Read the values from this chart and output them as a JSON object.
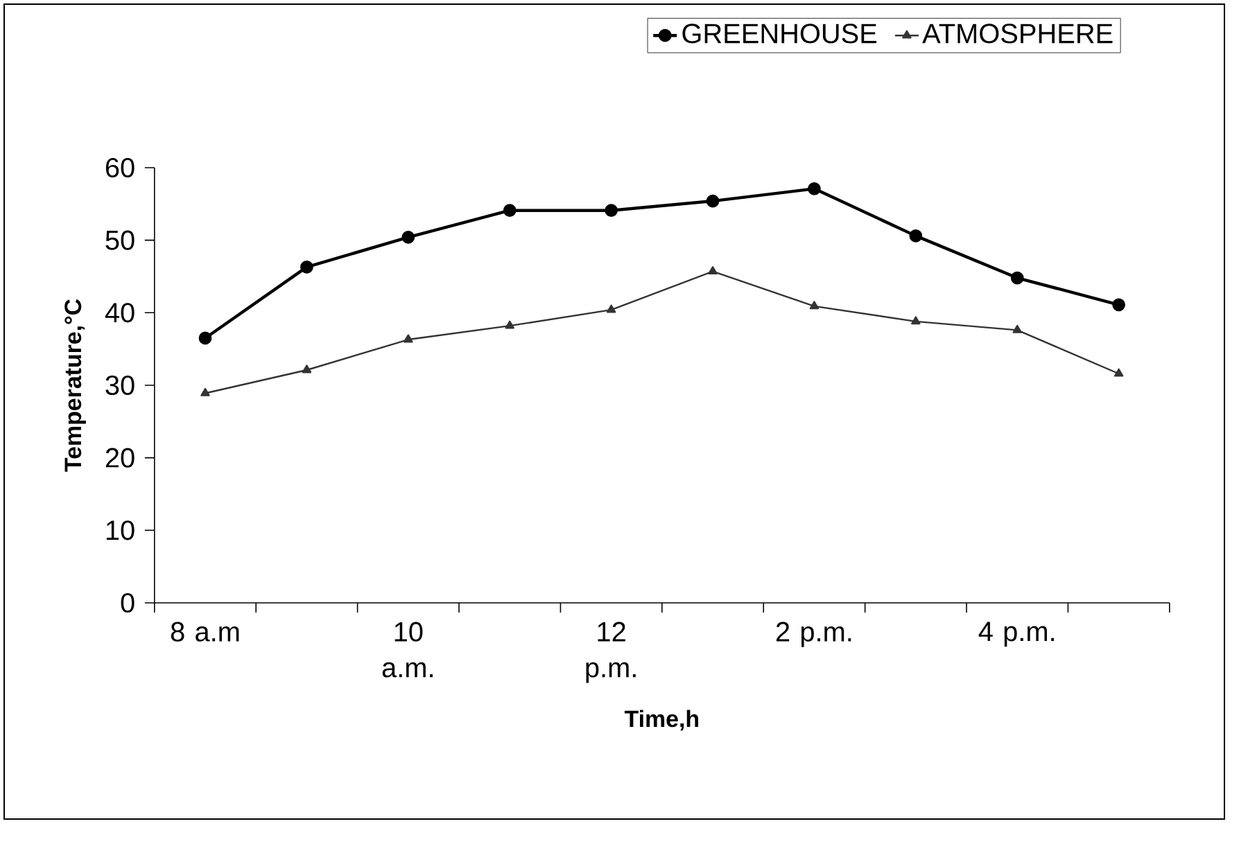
{
  "chart_data": {
    "type": "line",
    "xlabel": "Time,h",
    "ylabel": "Temperature,°C",
    "categories": [
      "8 a.m",
      null,
      "10 a.m.",
      null,
      "12 p.m.",
      null,
      "2 p.m.",
      null,
      "4 p.m.",
      null
    ],
    "series": [
      {
        "name": "GREENHOUSE",
        "color": "#000000",
        "marker": "circle",
        "values": [
          36.5,
          46.3,
          50.4,
          54.1,
          54.1,
          55.4,
          57.1,
          50.6,
          44.8,
          41.1
        ]
      },
      {
        "name": "ATMOSPHERE",
        "color": "#333333",
        "marker": "triangle",
        "values": [
          28.9,
          32.1,
          36.3,
          38.2,
          40.4,
          45.7,
          40.9,
          38.8,
          37.6,
          31.6
        ]
      }
    ],
    "ylim": [
      0,
      60
    ],
    "yticks": [
      0,
      10,
      20,
      30,
      40,
      50,
      60
    ],
    "grid": false,
    "legend": "top right",
    "line_style": "solid"
  }
}
